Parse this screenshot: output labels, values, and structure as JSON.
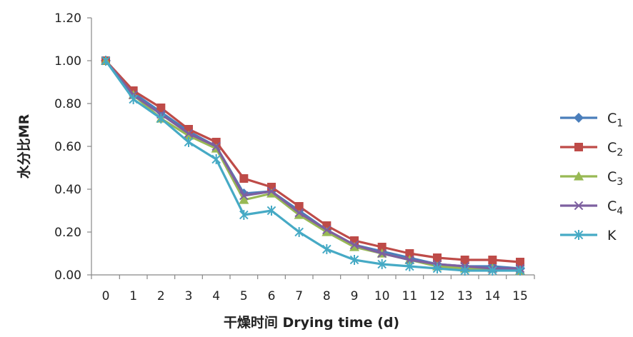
{
  "chart_data": {
    "type": "line",
    "xlabel": "干燥时间 Drying time (d)",
    "ylabel": "水分比MR",
    "xlim": [
      0,
      15
    ],
    "ylim": [
      0,
      1.2
    ],
    "x": [
      0,
      1,
      2,
      3,
      4,
      5,
      6,
      7,
      8,
      9,
      10,
      11,
      12,
      13,
      14,
      15
    ],
    "x_ticks": [
      "0",
      "1",
      "2",
      "3",
      "4",
      "5",
      "6",
      "7",
      "8",
      "9",
      "10",
      "11",
      "12",
      "13",
      "14",
      "15"
    ],
    "y_ticks": [
      "0.00",
      "0.20",
      "0.40",
      "0.60",
      "0.80",
      "1.00",
      "1.20"
    ],
    "grid": false,
    "legend_position": "right",
    "series": [
      {
        "name": "C1",
        "color": "#4a7ebb",
        "marker": "diamond",
        "values": [
          1.0,
          0.85,
          0.76,
          0.67,
          0.6,
          0.38,
          0.39,
          0.3,
          0.21,
          0.14,
          0.11,
          0.08,
          0.05,
          0.04,
          0.04,
          0.03
        ]
      },
      {
        "name": "C2",
        "color": "#be4b48",
        "marker": "square",
        "values": [
          1.0,
          0.86,
          0.78,
          0.68,
          0.62,
          0.45,
          0.41,
          0.32,
          0.23,
          0.16,
          0.13,
          0.1,
          0.08,
          0.07,
          0.07,
          0.06
        ]
      },
      {
        "name": "C3",
        "color": "#98b954",
        "marker": "triangle",
        "values": [
          1.0,
          0.84,
          0.73,
          0.65,
          0.59,
          0.35,
          0.38,
          0.28,
          0.2,
          0.13,
          0.1,
          0.07,
          0.04,
          0.03,
          0.03,
          0.02
        ]
      },
      {
        "name": "C4",
        "color": "#7d60a0",
        "marker": "x",
        "values": [
          1.0,
          0.84,
          0.75,
          0.66,
          0.6,
          0.37,
          0.39,
          0.29,
          0.21,
          0.14,
          0.1,
          0.07,
          0.05,
          0.04,
          0.03,
          0.03
        ]
      },
      {
        "name": "K",
        "color": "#46aac5",
        "marker": "star",
        "values": [
          1.0,
          0.82,
          0.73,
          0.62,
          0.54,
          0.28,
          0.3,
          0.2,
          0.12,
          0.07,
          0.05,
          0.04,
          0.03,
          0.02,
          0.02,
          0.02
        ]
      }
    ]
  }
}
